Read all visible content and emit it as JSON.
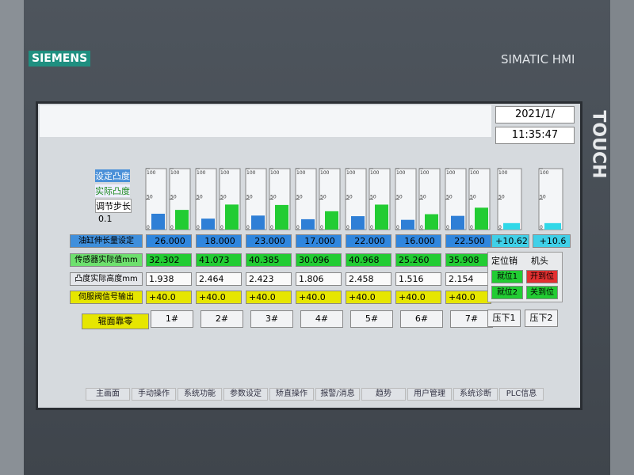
{
  "header": {
    "brand": "SIEMENS",
    "model": "SIMATIC HMI",
    "touch": "TOUCH",
    "date": "2021/1/",
    "time": "11:35:47"
  },
  "legend": {
    "setpoint": "设定凸度",
    "actual": "实际凸度",
    "step_label": "调节步长",
    "step_value": "0.1"
  },
  "gauges": {
    "range": [
      0,
      100
    ],
    "ticks": [
      0,
      50,
      100
    ]
  },
  "rows": [
    {
      "label": "油缸伸长量设定",
      "values": [
        26,
        18,
        23,
        17,
        22,
        16,
        22.5,
        10.62,
        10.6
      ],
      "value_labels": [
        "26.000",
        "18.000",
        "23.000",
        "17.000",
        "22.000",
        "16.000",
        "22.500",
        "+10.62",
        "+10.6"
      ]
    },
    {
      "label": "传感器实际值mm",
      "values": [
        32.302,
        41.073,
        40.385,
        30.096,
        40.968,
        25.26,
        35.908
      ],
      "value_labels": [
        "32.302",
        "41.073",
        "40.385",
        "30.096",
        "40.968",
        "25.260",
        "35.908"
      ]
    },
    {
      "label": "凸度实际高度mm",
      "values": [
        1.938,
        2.464,
        2.423,
        1.806,
        2.458,
        1.516,
        2.154
      ],
      "value_labels": [
        "1.938",
        "2.464",
        "2.423",
        "1.806",
        "2.458",
        "1.516",
        "2.154"
      ]
    },
    {
      "label": "伺服阀信号输出",
      "values": [
        40,
        40,
        40,
        40,
        40,
        40,
        40
      ],
      "value_labels": [
        "+40.0",
        "+40.0",
        "+40.0",
        "+40.0",
        "+40.0",
        "+40.0",
        "+40.0"
      ]
    }
  ],
  "buttons": {
    "label": "辊面靠零",
    "items": [
      "1#",
      "2#",
      "3#",
      "4#",
      "5#",
      "6#",
      "7#"
    ],
    "press": [
      "压下1",
      "压下2"
    ]
  },
  "status": {
    "pin": "定位销",
    "head": "机头",
    "pin1": "就位1",
    "pin2": "就位2",
    "head1": "开到位",
    "head2": "关到位"
  },
  "nav": [
    "主画面",
    "手动操作",
    "系统功能",
    "参数设定",
    "矫直操作",
    "报警/消息",
    "趋势",
    "用户管理",
    "系统诊断",
    "PLC信息"
  ]
}
